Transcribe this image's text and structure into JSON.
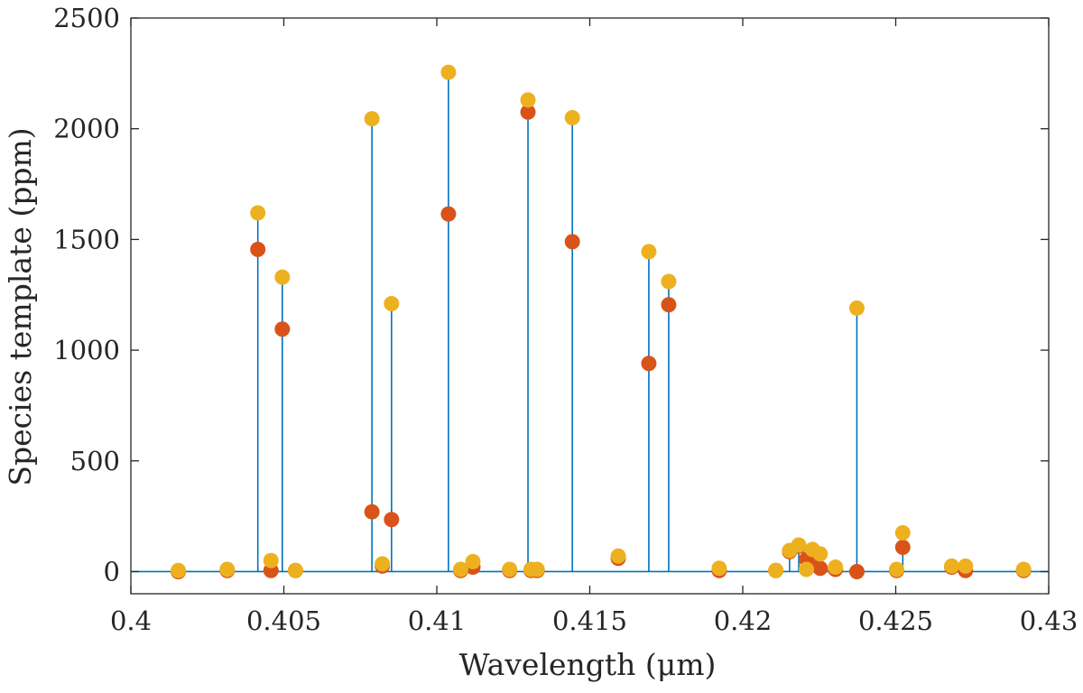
{
  "chart_data": {
    "type": "scatter",
    "title": "",
    "xlabel": "Wavelength (μm)",
    "ylabel": "Species template (ppm)",
    "xlim": [
      0.4,
      0.43
    ],
    "ylim": [
      -100,
      2500
    ],
    "x_ticks": [
      0.4,
      0.405,
      0.41,
      0.415,
      0.42,
      0.425,
      0.43
    ],
    "x_tick_labels": [
      "0.4",
      "0.405",
      "0.41",
      "0.415",
      "0.42",
      "0.425",
      "0.43"
    ],
    "y_ticks": [
      0,
      500,
      1000,
      1500,
      2000,
      2500
    ],
    "y_tick_labels": [
      "0",
      "500",
      "1000",
      "1500",
      "2000",
      "2500"
    ],
    "grid": false,
    "colors": {
      "spectrum": "#0072BD",
      "red_markers": "#D95319",
      "yellow_markers": "#EDB120",
      "axis": "#262626"
    },
    "series": [
      {
        "kind": "line",
        "color": "#0072BD",
        "lines": [
          {
            "x": 0.40415,
            "y": 1620
          },
          {
            "x": 0.40495,
            "y": 1330
          },
          {
            "x": 0.40788,
            "y": 2045
          },
          {
            "x": 0.40852,
            "y": 1210
          },
          {
            "x": 0.41038,
            "y": 2255
          },
          {
            "x": 0.41298,
            "y": 2130
          },
          {
            "x": 0.41443,
            "y": 2050
          },
          {
            "x": 0.41693,
            "y": 1445
          },
          {
            "x": 0.41758,
            "y": 1310
          },
          {
            "x": 0.42153,
            "y": 95
          },
          {
            "x": 0.42183,
            "y": 120
          },
          {
            "x": 0.42373,
            "y": 1190
          },
          {
            "x": 0.42523,
            "y": 175
          }
        ]
      },
      {
        "kind": "markers",
        "color": "#D95319",
        "x": [
          0.40155,
          0.40315,
          0.40415,
          0.40458,
          0.40495,
          0.40538,
          0.40788,
          0.40822,
          0.40852,
          0.41038,
          0.41078,
          0.41118,
          0.41238,
          0.41298,
          0.41308,
          0.41328,
          0.41443,
          0.41593,
          0.41693,
          0.41758,
          0.41923,
          0.42108,
          0.42153,
          0.42183,
          0.42208,
          0.42228,
          0.42253,
          0.42303,
          0.42373,
          0.42503,
          0.42523,
          0.42683,
          0.42728,
          0.42918
        ],
        "y": [
          0,
          5,
          1455,
          5,
          1095,
          5,
          270,
          25,
          235,
          1615,
          5,
          20,
          5,
          2075,
          5,
          5,
          1490,
          60,
          940,
          1205,
          5,
          5,
          90,
          115,
          55,
          30,
          15,
          10,
          0,
          5,
          110,
          20,
          5,
          5
        ]
      },
      {
        "kind": "markers",
        "color": "#EDB120",
        "x": [
          0.40155,
          0.40315,
          0.40415,
          0.40458,
          0.40495,
          0.40538,
          0.40788,
          0.40822,
          0.40852,
          0.41038,
          0.41078,
          0.41118,
          0.41238,
          0.41298,
          0.41308,
          0.41328,
          0.41443,
          0.41593,
          0.41693,
          0.41758,
          0.41923,
          0.42108,
          0.42153,
          0.42183,
          0.42208,
          0.42228,
          0.42253,
          0.42303,
          0.42373,
          0.42503,
          0.42523,
          0.42683,
          0.42728,
          0.42918
        ],
        "y": [
          5,
          10,
          1620,
          50,
          1330,
          5,
          2045,
          35,
          1210,
          2255,
          10,
          45,
          10,
          2130,
          10,
          10,
          2050,
          70,
          1445,
          1310,
          15,
          5,
          95,
          120,
          10,
          100,
          80,
          20,
          1190,
          10,
          175,
          25,
          25,
          10
        ]
      }
    ]
  }
}
